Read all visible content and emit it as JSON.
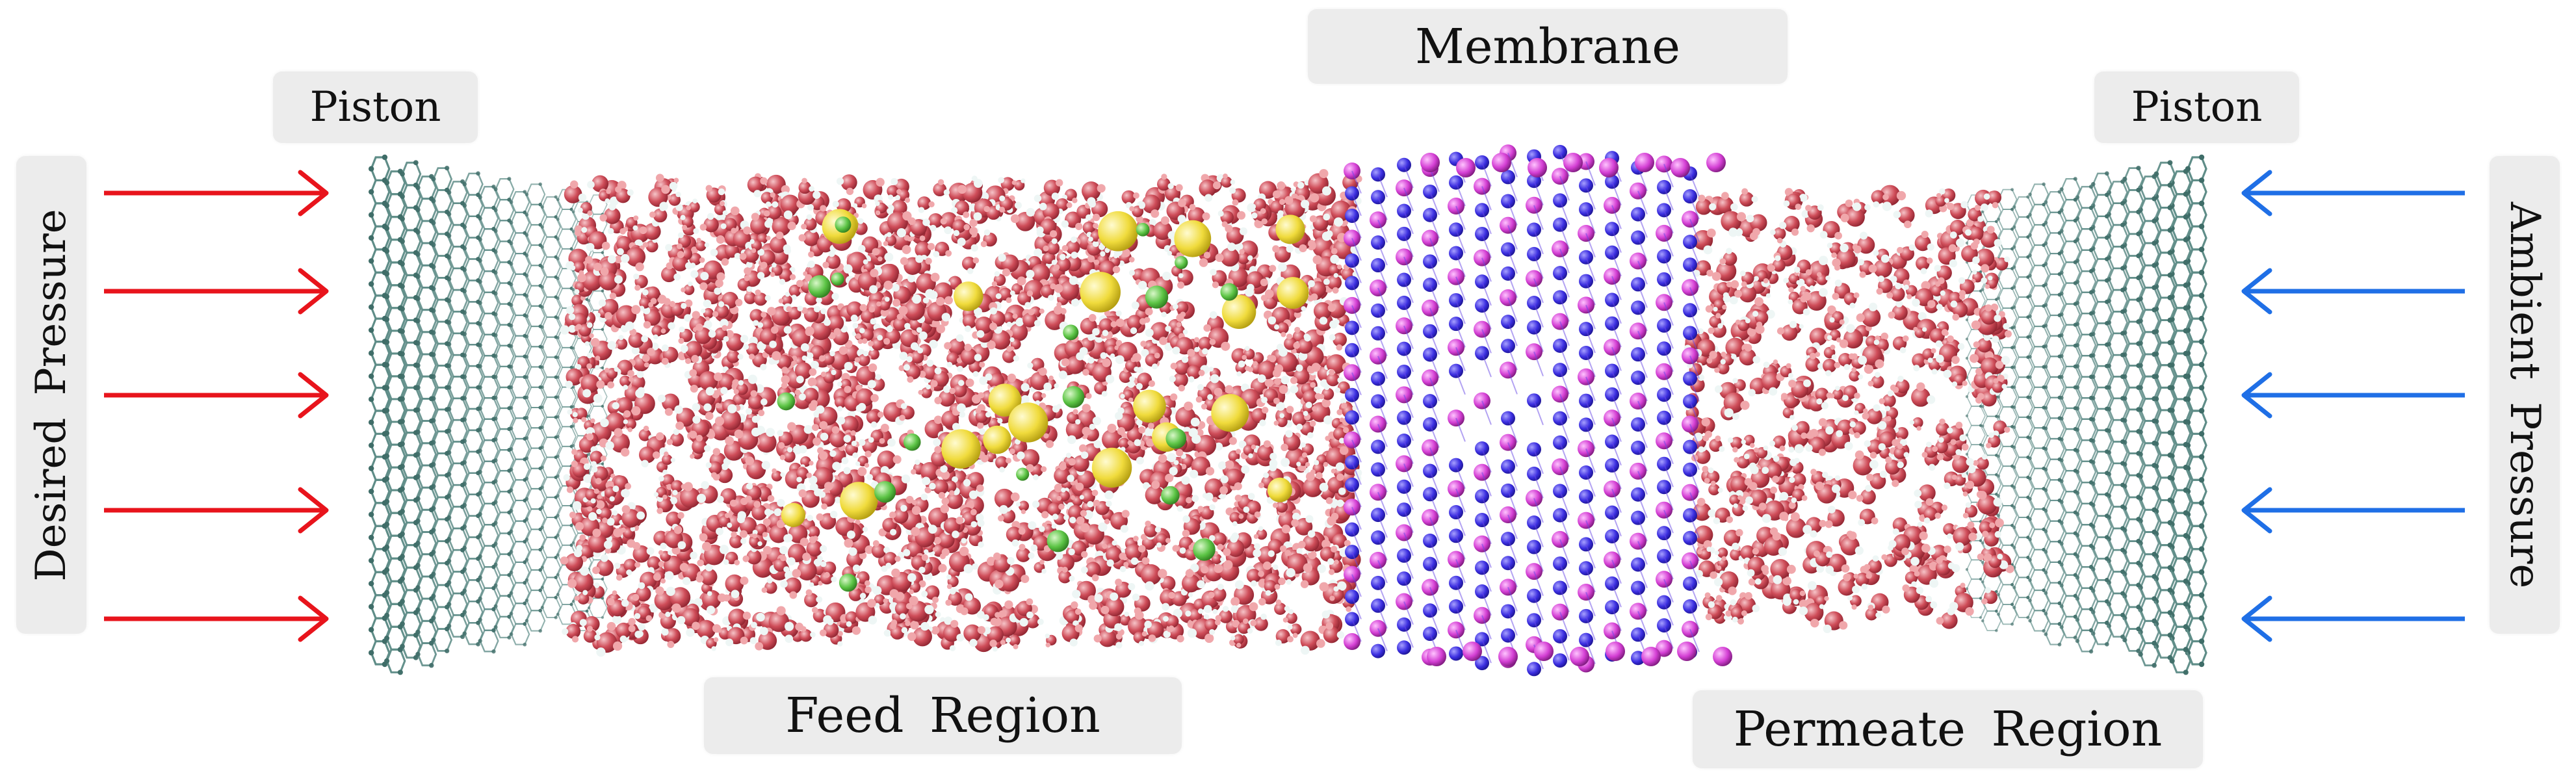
{
  "labels": {
    "piston_left": "Piston",
    "piston_right": "Piston",
    "membrane": "Membrane",
    "feed_region": "Feed Region",
    "permeate_region": "Permeate Region",
    "desired_pressure": "Desired Pressure",
    "ambient_pressure": "Ambient Pressure"
  },
  "colors": {
    "desired_arrow": "#e8141c",
    "ambient_arrow": "#1f6fe6",
    "piston_lattice": "#5f8d88",
    "water_oxygen": "#c94a55",
    "water_hydrogen": "#f0a7ab",
    "ion_large": "#f3e14a",
    "ion_small": "#5cc445",
    "membrane_blue": "#3b2ee0",
    "membrane_magenta": "#d43fd4"
  },
  "icons": {
    "arrow_left_side": "right-arrow-icon",
    "arrow_right_side": "left-arrow-icon"
  }
}
